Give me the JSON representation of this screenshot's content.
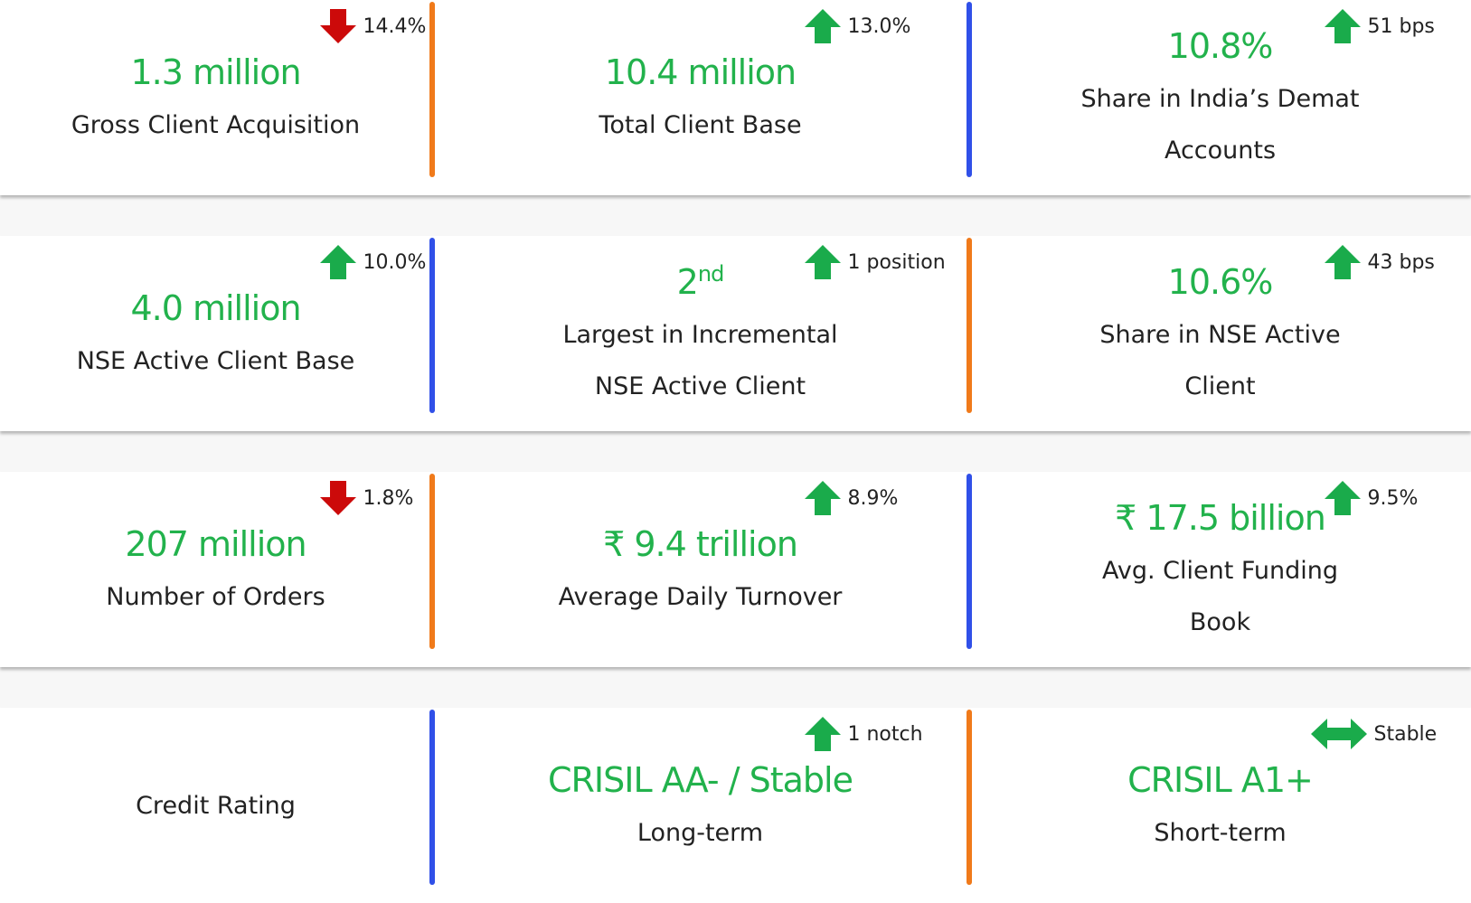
{
  "rows": [
    {
      "cells": [
        {
          "value": "1.3 million",
          "label": "Gross Client Acquisition",
          "change": {
            "direction": "down",
            "text": "14.4%"
          }
        },
        {
          "value": "10.4 million",
          "label": "Total Client Base",
          "change": {
            "direction": "up",
            "text": "13.0%"
          }
        },
        {
          "value": "10.8%",
          "label": "Share in India’s Demat Accounts",
          "change": {
            "direction": "up",
            "text": "51 bps"
          }
        }
      ]
    },
    {
      "cells": [
        {
          "value": "4.0 million",
          "label": "NSE Active Client Base",
          "change": {
            "direction": "up",
            "text": "10.0%"
          }
        },
        {
          "value": "2",
          "value_sup": "nd",
          "label": "Largest in Incremental NSE Active Client",
          "change": {
            "direction": "up",
            "text": "1 position"
          }
        },
        {
          "value": "10.6%",
          "label": "Share in NSE Active Client",
          "change": {
            "direction": "up",
            "text": "43 bps"
          }
        }
      ]
    },
    {
      "cells": [
        {
          "value": "207 million",
          "label": "Number of Orders",
          "change": {
            "direction": "down",
            "text": "1.8%"
          }
        },
        {
          "value": "₹ 9.4 trillion",
          "label": "Average Daily Turnover",
          "change": {
            "direction": "up",
            "text": "8.9%"
          }
        },
        {
          "value": "₹ 17.5 billion",
          "label": "Avg. Client Funding Book",
          "change": {
            "direction": "up",
            "text": "9.5%"
          }
        }
      ]
    },
    {
      "cells": [
        {
          "label": "Credit Rating"
        },
        {
          "value": "CRISIL AA- / Stable",
          "label": "Long-term",
          "change": {
            "direction": "up",
            "text": "1 notch"
          }
        },
        {
          "value": "CRISIL A1+",
          "label": "Short-term",
          "change": {
            "direction": "both",
            "text": "Stable"
          }
        }
      ]
    }
  ]
}
